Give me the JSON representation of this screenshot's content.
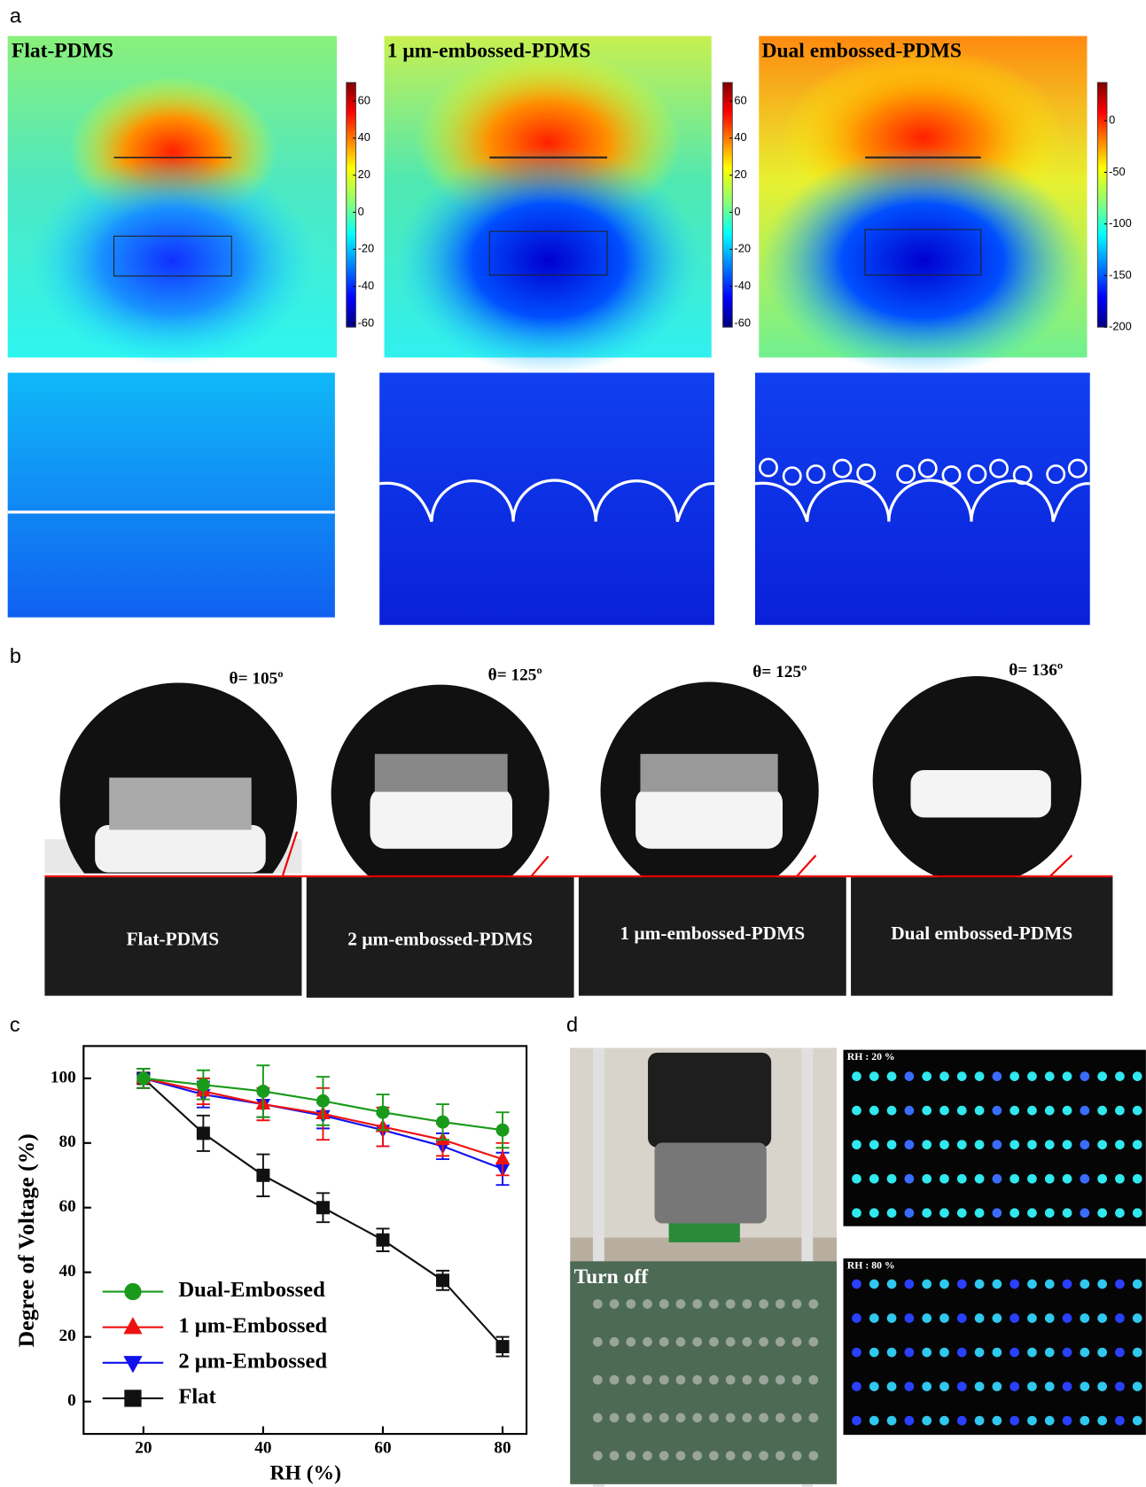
{
  "panel_letters": [
    "a",
    "b",
    "c",
    "d"
  ],
  "panel_a": {
    "titles": [
      "Flat-PDMS",
      "1 μm-embossed-PDMS",
      "Dual embossed-PDMS"
    ],
    "colorbars": [
      {
        "lim": [
          -62,
          70
        ],
        "ticks": [
          60,
          40,
          20,
          0,
          -20,
          -40,
          -60
        ]
      },
      {
        "lim": [
          -62,
          70
        ],
        "ticks": [
          60,
          40,
          20,
          0,
          -20,
          -40,
          -60
        ]
      },
      {
        "lim": [
          -200,
          37
        ],
        "ticks": [
          0,
          -50,
          -100,
          -150,
          -200
        ]
      }
    ]
  },
  "panel_b": {
    "angles": [
      "θ= 105º",
      "θ= 125º",
      "θ= 125º",
      "θ= 136º"
    ],
    "samples": [
      "Flat-PDMS",
      "2 μm-embossed-PDMS",
      "1 μm-embossed-PDMS",
      "Dual embossed-PDMS"
    ]
  },
  "chart_data": {
    "type": "line",
    "x_label": "RH (%)",
    "y_label": "Degree of Voltage (%)",
    "x": [
      20,
      30,
      40,
      50,
      60,
      70,
      80
    ],
    "xlim": [
      10,
      84
    ],
    "ylim": [
      -10,
      110
    ],
    "xticks": [
      20,
      40,
      60,
      80
    ],
    "yticks": [
      0,
      20,
      40,
      60,
      80,
      100
    ],
    "legend": "lower left",
    "series": [
      {
        "name": "Dual-Embossed",
        "color": "#1a9a1a",
        "marker": "circle",
        "values": [
          100,
          98,
          96,
          93,
          89.5,
          86.5,
          84
        ],
        "errors": [
          3,
          4.5,
          8,
          7.5,
          5.5,
          5.5,
          5.5
        ]
      },
      {
        "name": "1 μm-Embossed",
        "color": "#ee1111",
        "marker": "triangle-up",
        "values": [
          100,
          96,
          92,
          89,
          85,
          81,
          75
        ],
        "errors": [
          3,
          4,
          5,
          8,
          6,
          5,
          5
        ]
      },
      {
        "name": "2 μm-Embossed",
        "color": "#1111ee",
        "marker": "triangle-down",
        "values": [
          100,
          95,
          92,
          88.5,
          84,
          79,
          72
        ],
        "errors": [
          3,
          4,
          4,
          4,
          5,
          4,
          5
        ]
      },
      {
        "name": "Flat",
        "color": "#111111",
        "marker": "square",
        "values": [
          100,
          83,
          70,
          60,
          50,
          37.5,
          17
        ],
        "errors": [
          3,
          5.5,
          6.5,
          4.5,
          3.5,
          3,
          3
        ]
      }
    ]
  },
  "panel_d": {
    "labels": [
      "Turn off",
      "RH : 20 %",
      "RH : 80 %"
    ]
  }
}
